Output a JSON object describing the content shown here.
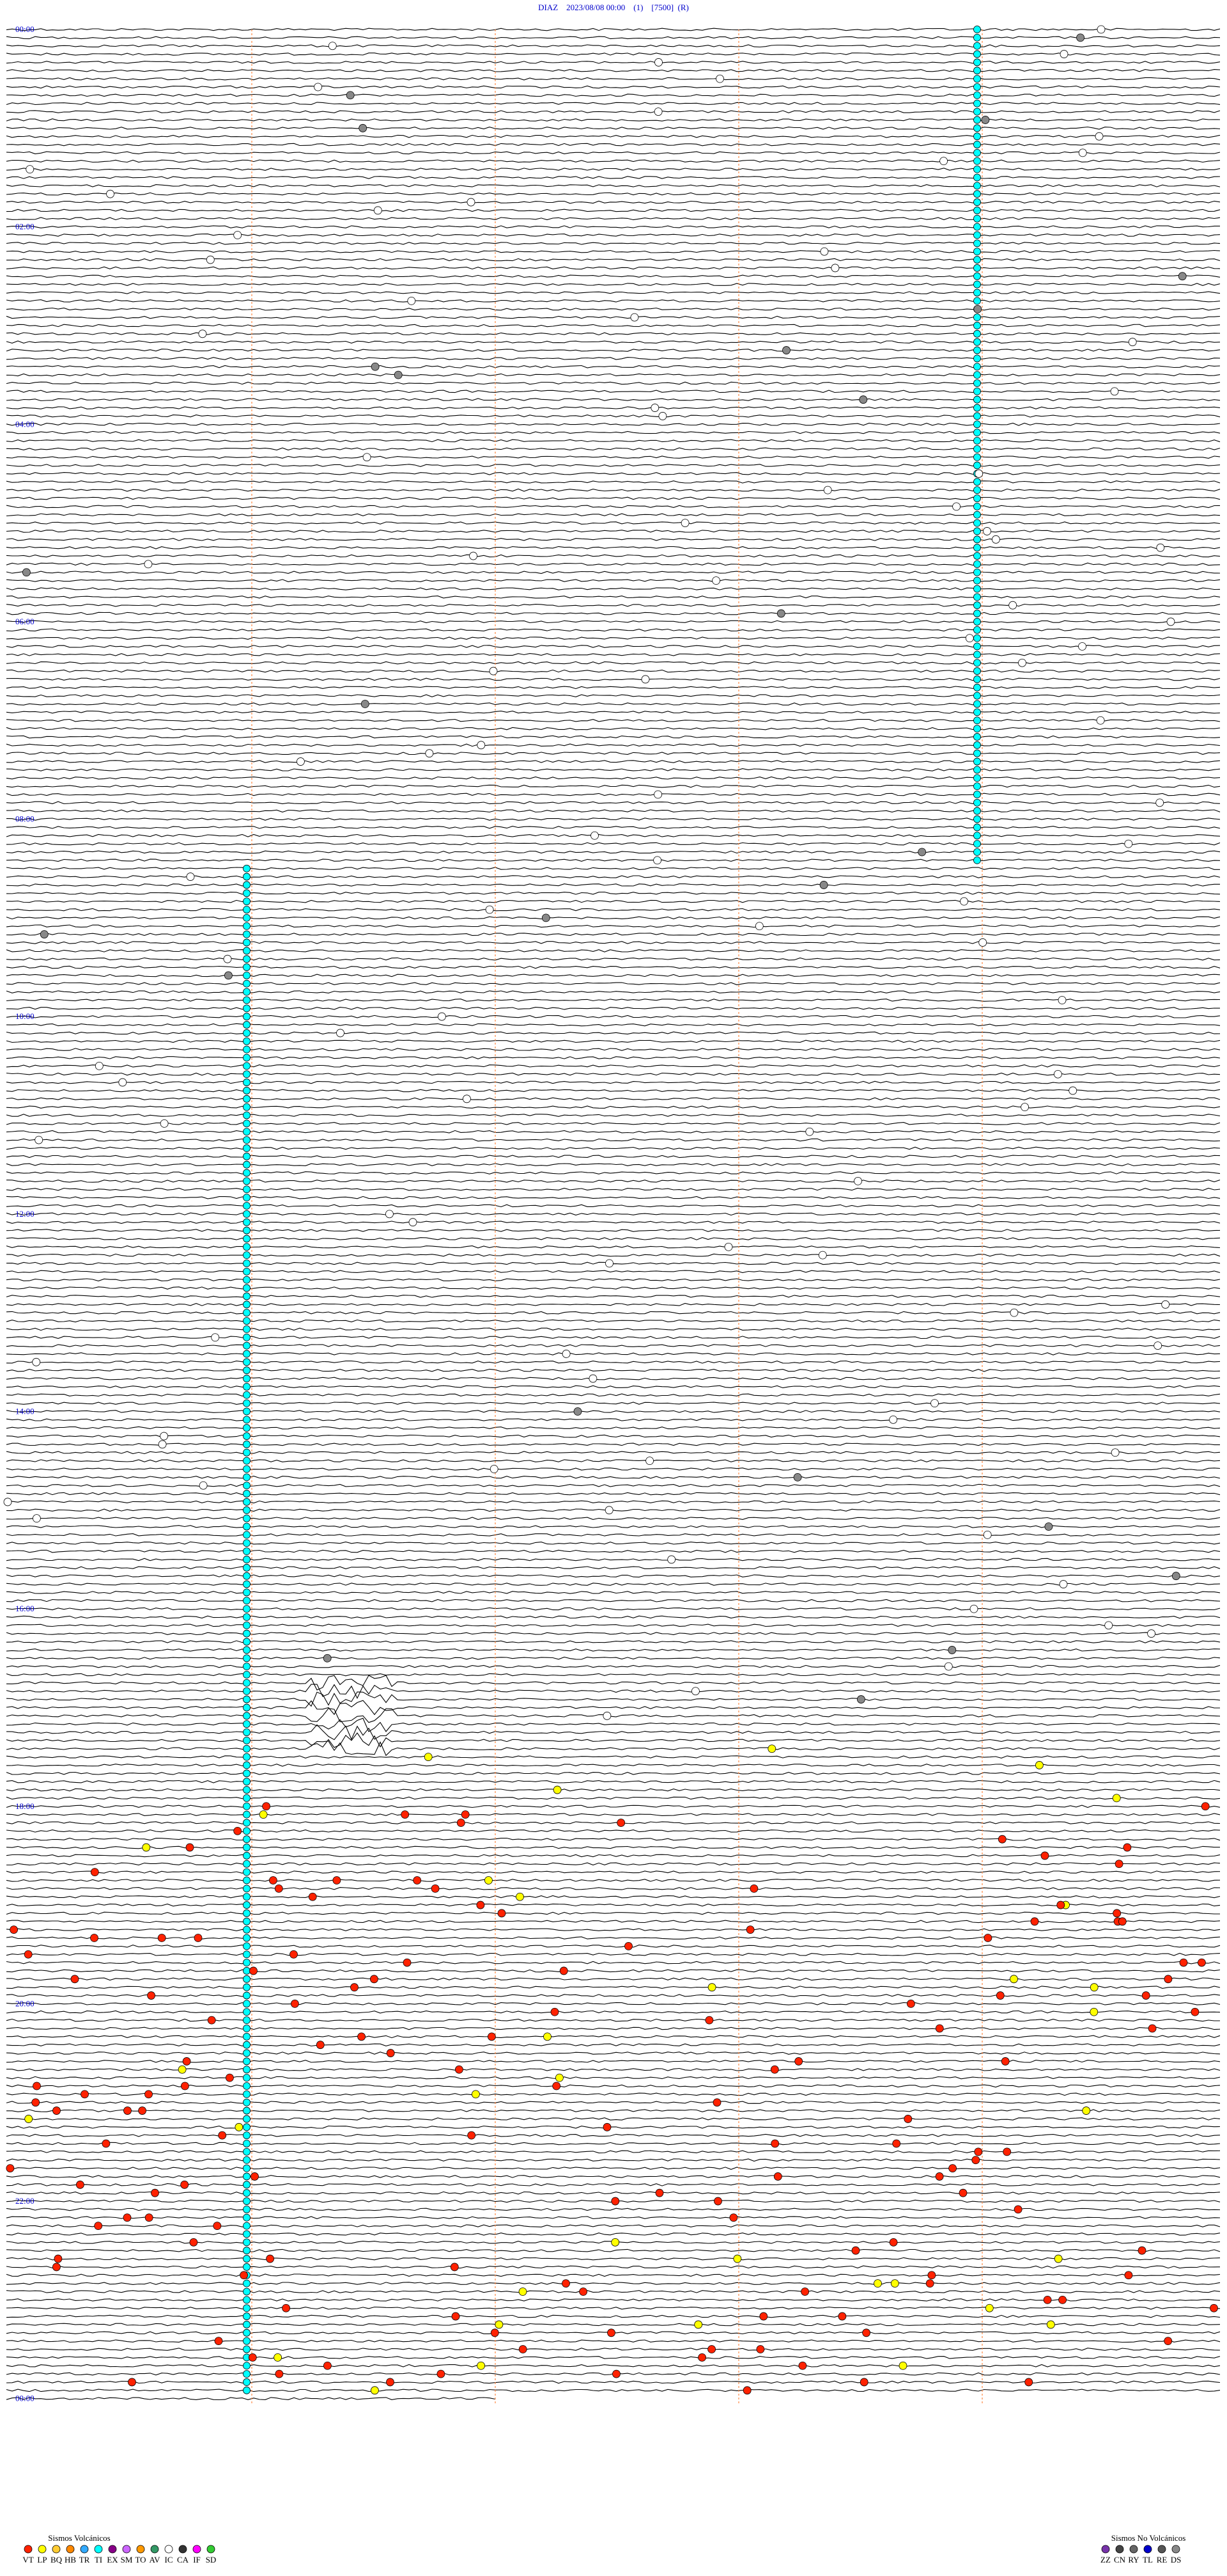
{
  "header": {
    "title": "DIAZ    2023/08/08 00:00    (1)    [7500]  (R)"
  },
  "hour_labels": [
    "00:00",
    "02:00",
    "04:00",
    "06:00",
    "08:00",
    "10:00",
    "12:00",
    "14:00",
    "16:00",
    "18:00",
    "20:00",
    "22:00",
    "00:00"
  ],
  "legend": {
    "volcanic": {
      "title": "Sismos Volcánicos",
      "items": [
        {
          "code": "VT",
          "color": "#ff2200"
        },
        {
          "code": "LP",
          "color": "#ffff00"
        },
        {
          "code": "BQ",
          "color": "#ffcc33"
        },
        {
          "code": "HB",
          "color": "#ff8800"
        },
        {
          "code": "TR",
          "color": "#33aaff"
        },
        {
          "code": "TI",
          "color": "#00ffff"
        },
        {
          "code": "EX",
          "color": "#880088"
        },
        {
          "code": "SM",
          "color": "#cc66ff"
        },
        {
          "code": "TO",
          "color": "#ff9900"
        },
        {
          "code": "AV",
          "color": "#339966"
        },
        {
          "code": "IC",
          "color": "#ffffff"
        },
        {
          "code": "CA",
          "color": "#333333"
        },
        {
          "code": "IF",
          "color": "#ff00ff"
        },
        {
          "code": "SD",
          "color": "#33cc33"
        }
      ]
    },
    "non_volcanic": {
      "title": "Sismos No Volcánicos",
      "items": [
        {
          "code": "ZZ",
          "color": "#7733aa"
        },
        {
          "code": "CN",
          "color": "#444444"
        },
        {
          "code": "RY",
          "color": "#666666"
        },
        {
          "code": "TL",
          "color": "#0000cc"
        },
        {
          "code": "RE",
          "color": "#555555"
        },
        {
          "code": "DS",
          "color": "#888888"
        }
      ]
    }
  }
}
